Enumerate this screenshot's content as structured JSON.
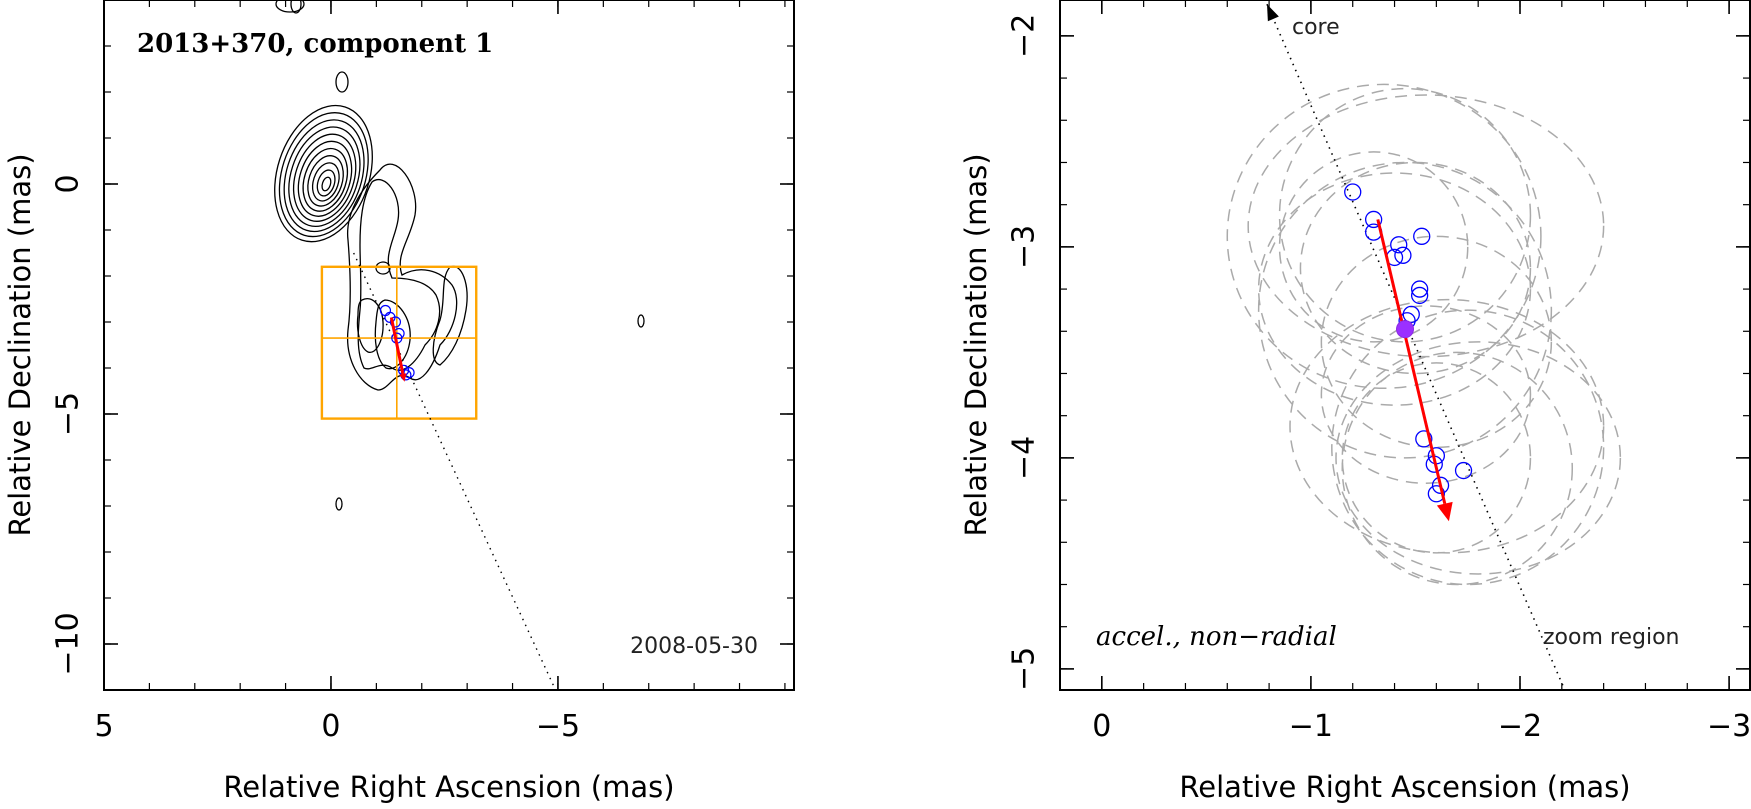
{
  "chart_data": [
    {
      "type": "scatter",
      "title": "2013+370, component 1",
      "date": "2008-05-30",
      "xlabel": "Relative Right Ascension (mas)",
      "ylabel": "Relative Declination (mas)",
      "xlim": [
        5,
        -10.2
      ],
      "ylim": [
        -11,
        4
      ],
      "xticks": [
        5,
        0,
        -5
      ],
      "yticks": [
        0,
        -5,
        -10
      ],
      "xtick_labels": [
        "5",
        "0",
        "−5"
      ],
      "ytick_labels": [
        "0",
        "−5",
        "−10"
      ],
      "contour_center": [
        0.1,
        0.0
      ],
      "contour_levels": 11,
      "zoom_box": {
        "x": [
          0.2,
          -3.2
        ],
        "y": [
          -1.8,
          -5.1
        ],
        "cross": [
          -1.45,
          -3.35
        ]
      },
      "trajectory_line": [
        [
          -0.5,
          -1.5
        ],
        [
          -4.9,
          -10.9
        ]
      ],
      "arrow": {
        "from": [
          -1.33,
          -2.9
        ],
        "to": [
          -1.62,
          -4.3
        ]
      },
      "points": [
        {
          "x": -1.2,
          "y": -2.75
        },
        {
          "x": -1.3,
          "y": -2.9
        },
        {
          "x": -1.42,
          "y": -3.0
        },
        {
          "x": -1.5,
          "y": -3.25
        },
        {
          "x": -1.45,
          "y": -3.35
        },
        {
          "x": -1.6,
          "y": -4.05
        },
        {
          "x": -1.65,
          "y": -4.15
        },
        {
          "x": -1.72,
          "y": -4.1
        }
      ]
    },
    {
      "type": "scatter",
      "annotation": "accel., non−radial",
      "core_label": "core",
      "zoom_label": "zoom region",
      "xlabel": "Relative Right Ascension (mas)",
      "ylabel": "Relative Declination (mas)",
      "xlim": [
        0.2,
        -3.1
      ],
      "ylim": [
        -5.1,
        -1.83
      ],
      "xticks": [
        0,
        -1,
        -2,
        -3
      ],
      "yticks": [
        -2,
        -3,
        -4,
        -5
      ],
      "xtick_labels": [
        "0",
        "−1",
        "−2",
        "−3"
      ],
      "ytick_labels": [
        "−2",
        "−3",
        "−4",
        "−5"
      ],
      "trajectory_line": [
        [
          -0.79,
          -1.85
        ],
        [
          -2.21,
          -5.09
        ]
      ],
      "arrow": {
        "from": [
          -1.32,
          -2.87
        ],
        "to": [
          -1.66,
          -4.3
        ]
      },
      "mean_point": {
        "x": -1.45,
        "y": -3.39
      },
      "points": [
        {
          "x": -1.2,
          "y": -2.74
        },
        {
          "x": -1.3,
          "y": -2.87
        },
        {
          "x": -1.3,
          "y": -2.93
        },
        {
          "x": -1.42,
          "y": -2.99
        },
        {
          "x": -1.4,
          "y": -3.05
        },
        {
          "x": -1.44,
          "y": -3.04
        },
        {
          "x": -1.53,
          "y": -2.95
        },
        {
          "x": -1.52,
          "y": -3.2
        },
        {
          "x": -1.52,
          "y": -3.23
        },
        {
          "x": -1.48,
          "y": -3.32
        },
        {
          "x": -1.46,
          "y": -3.35
        },
        {
          "x": -1.54,
          "y": -3.91
        },
        {
          "x": -1.6,
          "y": -3.99
        },
        {
          "x": -1.59,
          "y": -4.03
        },
        {
          "x": -1.73,
          "y": -4.06
        },
        {
          "x": -1.62,
          "y": -4.13
        },
        {
          "x": -1.6,
          "y": -4.17
        }
      ],
      "error_ellipses": [
        {
          "cx": -1.35,
          "cy": -2.95,
          "rx": 0.75,
          "ry": 0.72
        },
        {
          "cx": -1.45,
          "cy": -2.85,
          "rx": 0.6,
          "ry": 0.6
        },
        {
          "cx": -1.5,
          "cy": -3.1,
          "rx": 0.55,
          "ry": 0.5
        },
        {
          "cx": -1.3,
          "cy": -3.0,
          "rx": 0.45,
          "ry": 0.45
        },
        {
          "cx": -1.55,
          "cy": -2.9,
          "rx": 0.85,
          "ry": 0.62
        },
        {
          "cx": -1.4,
          "cy": -3.2,
          "rx": 0.65,
          "ry": 0.55
        },
        {
          "cx": -1.45,
          "cy": -3.3,
          "rx": 0.7,
          "ry": 0.7
        },
        {
          "cx": -1.6,
          "cy": -3.45,
          "rx": 0.55,
          "ry": 0.5
        },
        {
          "cx": -1.75,
          "cy": -3.95,
          "rx": 0.65,
          "ry": 0.65
        },
        {
          "cx": -1.7,
          "cy": -4.05,
          "rx": 0.55,
          "ry": 0.55
        },
        {
          "cx": -1.6,
          "cy": -4.0,
          "rx": 0.45,
          "ry": 0.45
        },
        {
          "cx": -1.8,
          "cy": -4.0,
          "rx": 0.68,
          "ry": 0.55
        },
        {
          "cx": -1.65,
          "cy": -3.85,
          "rx": 0.75,
          "ry": 0.6
        },
        {
          "cx": -1.55,
          "cy": -3.7,
          "rx": 0.5,
          "ry": 0.42
        }
      ]
    }
  ]
}
